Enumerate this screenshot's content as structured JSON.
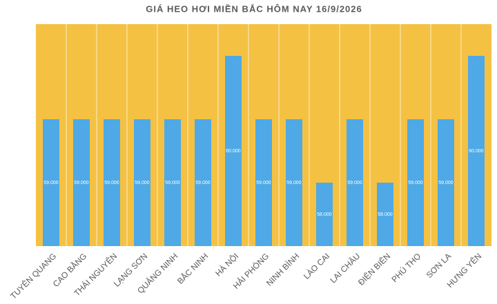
{
  "chart_data": {
    "type": "bar",
    "title": "GIÁ HEO HƠI MIỀN BẮC HÔM NAY 16/9/2026",
    "categories": [
      "TUYÊN QUANG",
      "CAO BẰNG",
      "THÁI NGUYÊN",
      "LẠNG SƠN",
      "QUẢNG NINH",
      "BẮC NINH",
      "HÀ NỘI",
      "HẢI PHÒNG",
      "NINH BÌNH",
      "LÀO CAI",
      "LAI CHÂU",
      "ĐIỆN BIÊN",
      "PHÚ THỌ",
      "SƠN LA",
      "HƯNG YÊN"
    ],
    "values": [
      59000,
      59000,
      59000,
      59000,
      59000,
      59000,
      60000,
      59000,
      59000,
      58000,
      59000,
      58000,
      59000,
      59000,
      60000
    ],
    "value_labels": [
      "59.000",
      "59.000",
      "59.000",
      "59.000",
      "59.000",
      "59.000",
      "60.000",
      "59.000",
      "59.000",
      "58.000",
      "59.000",
      "58.000",
      "59.000",
      "59.000",
      "60.000"
    ],
    "color": "#4ea9e6",
    "background": "#f4c143",
    "ylim": [
      57000,
      60500
    ]
  }
}
